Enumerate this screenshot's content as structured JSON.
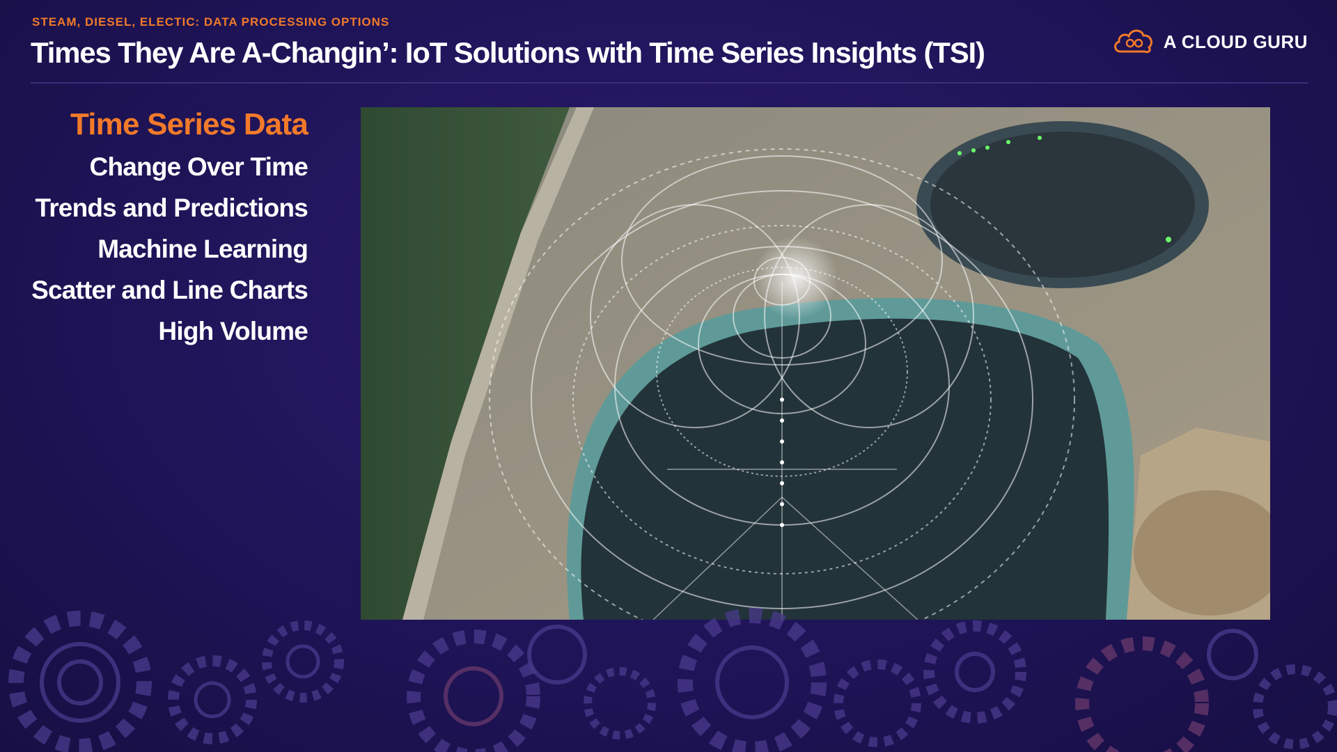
{
  "header": {
    "kicker": "STEAM, DIESEL, ELECTIC: DATA PROCESSING OPTIONS",
    "title": "Times They Are A-Changin’: IoT Solutions with Time Series Insights (TSI)"
  },
  "brand": {
    "name": "A CLOUD GURU",
    "icon": "cloud-logo-icon",
    "accent_color": "#f27a2a"
  },
  "topics": [
    {
      "label": "Time Series Data",
      "active": true
    },
    {
      "label": "Change Over Time",
      "active": false
    },
    {
      "label": "Trends and Predictions",
      "active": false
    },
    {
      "label": "Machine Learning",
      "active": false
    },
    {
      "label": "Scatter and Line Charts",
      "active": false
    },
    {
      "label": "High Volume",
      "active": false
    }
  ],
  "colors": {
    "background": "#1f1458",
    "accent": "#f27a2a",
    "text": "#ffffff"
  }
}
